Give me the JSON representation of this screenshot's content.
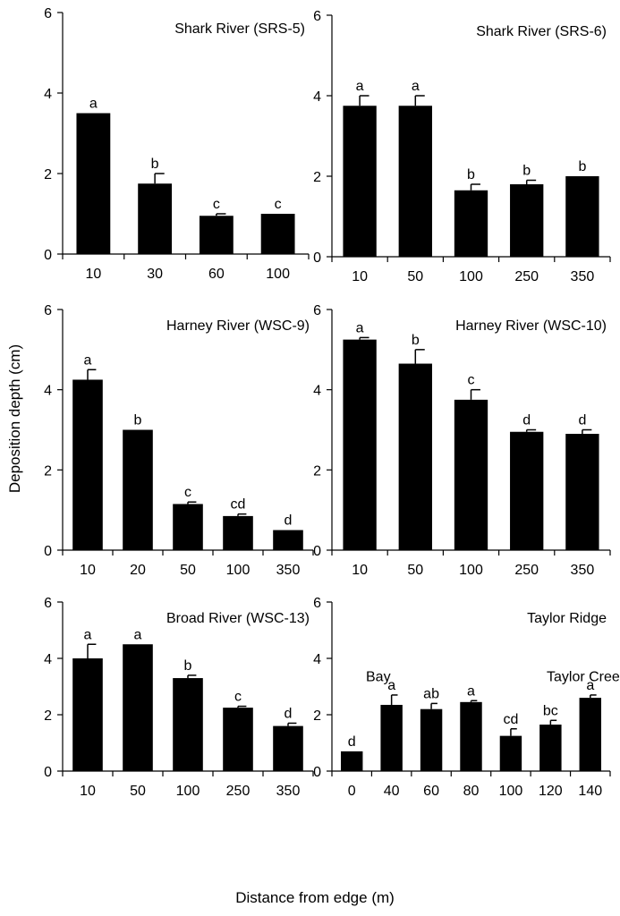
{
  "figure": {
    "ylabel": "Deposition depth (cm)",
    "xlabel": "Distance from edge (m)"
  },
  "chart_data": [
    {
      "type": "bar",
      "title": "Shark River (SRS-5)",
      "categories": [
        "10",
        "30",
        "60",
        "100"
      ],
      "values": [
        3.5,
        1.75,
        0.95,
        1.0
      ],
      "errors": [
        0,
        0.25,
        0.05,
        0
      ],
      "letters": [
        "a",
        "b",
        "c",
        "c"
      ],
      "ylim": [
        0,
        6
      ],
      "yticks": [
        0,
        2,
        4,
        6
      ],
      "annotations": []
    },
    {
      "type": "bar",
      "title": "Shark River (SRS-6)",
      "categories": [
        "10",
        "50",
        "100",
        "250",
        "350"
      ],
      "values": [
        3.75,
        3.75,
        1.65,
        1.8,
        2.0
      ],
      "errors": [
        0.25,
        0.25,
        0.15,
        0.1,
        0
      ],
      "letters": [
        "a",
        "a",
        "b",
        "b",
        "b"
      ],
      "ylim": [
        0,
        6
      ],
      "yticks": [
        0,
        2,
        4,
        6
      ],
      "annotations": []
    },
    {
      "type": "bar",
      "title": "Harney River (WSC-9)",
      "categories": [
        "10",
        "20",
        "50",
        "100",
        "350"
      ],
      "values": [
        4.25,
        3.0,
        1.15,
        0.85,
        0.5
      ],
      "errors": [
        0.25,
        0,
        0.05,
        0.05,
        0
      ],
      "letters": [
        "a",
        "b",
        "c",
        "cd",
        "d"
      ],
      "ylim": [
        0,
        6
      ],
      "yticks": [
        0,
        2,
        4,
        6
      ],
      "annotations": []
    },
    {
      "type": "bar",
      "title": "Harney River (WSC-10)",
      "categories": [
        "10",
        "50",
        "100",
        "250",
        "350"
      ],
      "values": [
        5.25,
        4.65,
        3.75,
        2.95,
        2.9
      ],
      "errors": [
        0.05,
        0.35,
        0.25,
        0.05,
        0.1
      ],
      "letters": [
        "a",
        "b",
        "c",
        "d",
        "d"
      ],
      "ylim": [
        0,
        6
      ],
      "yticks": [
        0,
        2,
        4,
        6
      ],
      "annotations": []
    },
    {
      "type": "bar",
      "title": "Broad River (WSC-13)",
      "categories": [
        "10",
        "50",
        "100",
        "250",
        "350"
      ],
      "values": [
        4.0,
        4.5,
        3.3,
        2.25,
        1.6
      ],
      "errors": [
        0.5,
        0,
        0.1,
        0.05,
        0.1
      ],
      "letters": [
        "a",
        "a",
        "b",
        "c",
        "d"
      ],
      "ylim": [
        0,
        6
      ],
      "yticks": [
        0,
        2,
        4,
        6
      ],
      "annotations": []
    },
    {
      "type": "bar",
      "title": "Taylor Ridge",
      "categories": [
        "0",
        "40",
        "60",
        "80",
        "100",
        "120",
        "140"
      ],
      "values": [
        0.7,
        2.35,
        2.2,
        2.45,
        1.25,
        1.65,
        2.6
      ],
      "errors": [
        0,
        0.35,
        0.2,
        0.05,
        0.25,
        0.15,
        0.1
      ],
      "letters": [
        "d",
        "a",
        "ab",
        "a",
        "cd",
        "bc",
        "a"
      ],
      "ylim": [
        0,
        6
      ],
      "yticks": [
        0,
        2,
        4,
        6
      ],
      "annotations": [
        "Bay",
        "Taylor Creek"
      ]
    }
  ]
}
